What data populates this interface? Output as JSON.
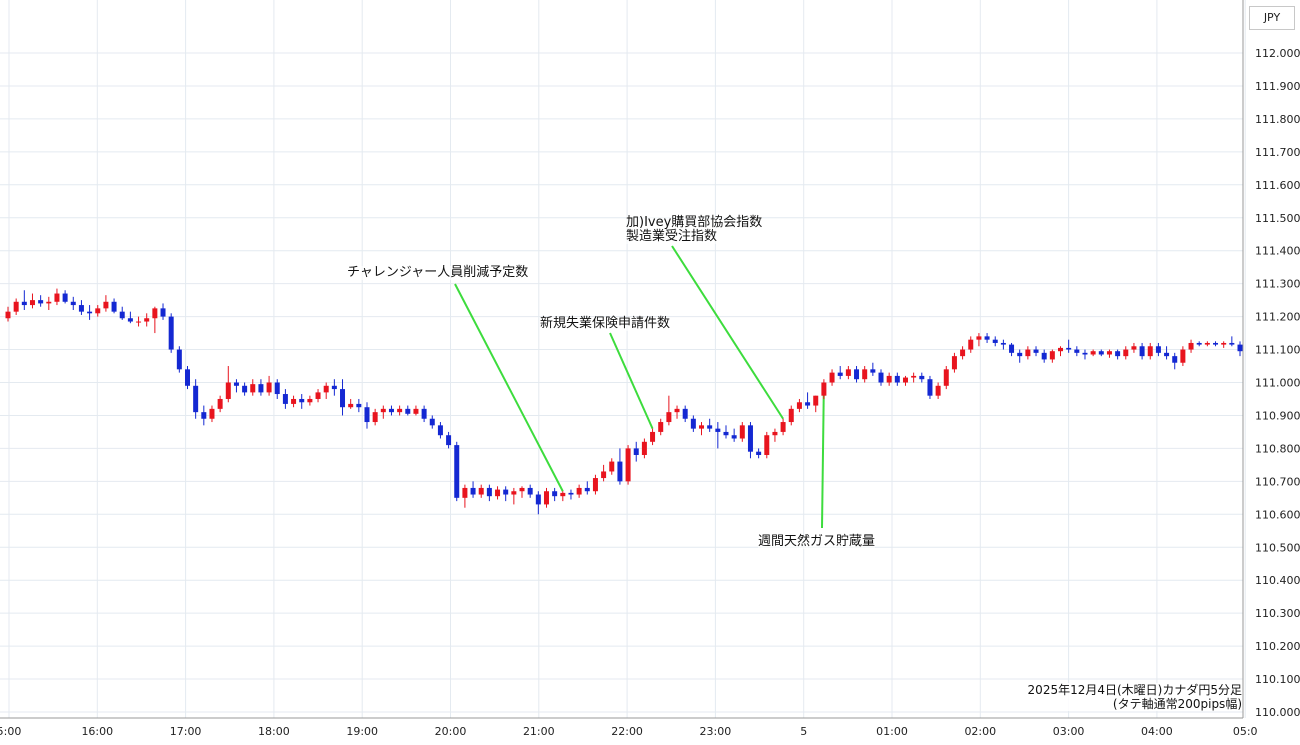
{
  "chart_data": {
    "type": "candlestick",
    "currency_label": "JPY",
    "caption_line1": "2025年12月4日(木曜日)カナダ円5分足",
    "caption_line2": "(タテ軸通常200pips幅)",
    "y_range": [
      110.0,
      112.05
    ],
    "y_ticks": [
      "112.000",
      "111.900",
      "111.800",
      "111.700",
      "111.600",
      "111.500",
      "111.400",
      "111.300",
      "111.200",
      "111.100",
      "111.000",
      "110.900",
      "110.800",
      "110.700",
      "110.600",
      "110.500",
      "110.400",
      "110.300",
      "110.200",
      "110.100",
      "110.000"
    ],
    "x_ticks": [
      "5:00",
      "16:00",
      "17:00",
      "18:00",
      "19:00",
      "20:00",
      "21:00",
      "22:00",
      "23:00",
      "5",
      "01:00",
      "02:00",
      "03:00",
      "04:00",
      "05:0"
    ],
    "up_color": "#e8141e",
    "down_color": "#1428d2",
    "annotations": [
      {
        "text": "チャレンジャー人員削減予定数",
        "candle": 68
      },
      {
        "text": "新規失業保険申請件数",
        "candle": 79
      },
      {
        "text": "加)Ivey購買部協会指数",
        "text2": "製造業受注指数",
        "candle": 95
      },
      {
        "text": "週間天然ガス貯蔵量",
        "candle": 100
      }
    ],
    "ohlc": [
      [
        111.195,
        111.23,
        111.185,
        111.215
      ],
      [
        111.215,
        111.255,
        111.205,
        111.245
      ],
      [
        111.245,
        111.28,
        111.22,
        111.235
      ],
      [
        111.235,
        111.27,
        111.225,
        111.25
      ],
      [
        111.25,
        111.265,
        111.23,
        111.24
      ],
      [
        111.24,
        111.26,
        111.22,
        111.245
      ],
      [
        111.245,
        111.285,
        111.235,
        111.27
      ],
      [
        111.27,
        111.28,
        111.24,
        111.245
      ],
      [
        111.245,
        111.26,
        111.22,
        111.235
      ],
      [
        111.235,
        111.25,
        111.205,
        111.215
      ],
      [
        111.215,
        111.235,
        111.19,
        111.21
      ],
      [
        111.21,
        111.235,
        111.2,
        111.225
      ],
      [
        111.225,
        111.265,
        111.215,
        111.245
      ],
      [
        111.245,
        111.255,
        111.21,
        111.215
      ],
      [
        111.215,
        111.23,
        111.19,
        111.195
      ],
      [
        111.195,
        111.215,
        111.18,
        111.185
      ],
      [
        111.185,
        111.2,
        111.17,
        111.185
      ],
      [
        111.185,
        111.21,
        111.17,
        111.195
      ],
      [
        111.195,
        111.23,
        111.15,
        111.225
      ],
      [
        111.225,
        111.24,
        111.19,
        111.2
      ],
      [
        111.2,
        111.21,
        111.09,
        111.1
      ],
      [
        111.1,
        111.11,
        111.03,
        111.04
      ],
      [
        111.04,
        111.05,
        110.98,
        110.99
      ],
      [
        110.99,
        111.01,
        110.89,
        110.91
      ],
      [
        110.91,
        110.93,
        110.87,
        110.89
      ],
      [
        110.89,
        110.93,
        110.88,
        110.92
      ],
      [
        110.92,
        110.96,
        110.91,
        110.95
      ],
      [
        110.95,
        111.05,
        110.94,
        111.0
      ],
      [
        111.0,
        111.01,
        110.97,
        110.99
      ],
      [
        110.99,
        111.0,
        110.96,
        110.97
      ],
      [
        110.97,
        111.01,
        110.96,
        110.995
      ],
      [
        110.995,
        111.01,
        110.96,
        110.97
      ],
      [
        110.97,
        111.02,
        110.96,
        111.0
      ],
      [
        111.0,
        111.01,
        110.95,
        110.965
      ],
      [
        110.965,
        110.98,
        110.92,
        110.935
      ],
      [
        110.935,
        110.96,
        110.925,
        110.95
      ],
      [
        110.95,
        110.965,
        110.92,
        110.94
      ],
      [
        110.94,
        110.96,
        110.93,
        110.95
      ],
      [
        110.95,
        110.98,
        110.94,
        110.97
      ],
      [
        110.97,
        111.0,
        110.95,
        110.99
      ],
      [
        110.99,
        111.01,
        110.96,
        110.98
      ],
      [
        110.98,
        111.01,
        110.9,
        110.925
      ],
      [
        110.925,
        110.95,
        110.92,
        110.935
      ],
      [
        110.935,
        110.95,
        110.91,
        110.925
      ],
      [
        110.925,
        110.94,
        110.86,
        110.88
      ],
      [
        110.88,
        110.92,
        110.87,
        110.91
      ],
      [
        110.91,
        110.93,
        110.89,
        110.92
      ],
      [
        110.92,
        110.93,
        110.9,
        110.91
      ],
      [
        110.91,
        110.93,
        110.9,
        110.92
      ],
      [
        110.92,
        110.93,
        110.9,
        110.905
      ],
      [
        110.905,
        110.93,
        110.9,
        110.92
      ],
      [
        110.92,
        110.93,
        110.88,
        110.89
      ],
      [
        110.89,
        110.9,
        110.86,
        110.87
      ],
      [
        110.87,
        110.88,
        110.83,
        110.84
      ],
      [
        110.84,
        110.85,
        110.8,
        110.81
      ],
      [
        110.81,
        110.82,
        110.64,
        110.65
      ],
      [
        110.65,
        110.69,
        110.62,
        110.68
      ],
      [
        110.68,
        110.7,
        110.65,
        110.66
      ],
      [
        110.66,
        110.69,
        110.65,
        110.68
      ],
      [
        110.68,
        110.69,
        110.64,
        110.655
      ],
      [
        110.655,
        110.685,
        110.645,
        110.675
      ],
      [
        110.675,
        110.685,
        110.64,
        110.66
      ],
      [
        110.66,
        110.68,
        110.63,
        110.67
      ],
      [
        110.67,
        110.685,
        110.65,
        110.68
      ],
      [
        110.68,
        110.69,
        110.65,
        110.66
      ],
      [
        110.66,
        110.67,
        110.6,
        110.63
      ],
      [
        110.63,
        110.68,
        110.62,
        110.67
      ],
      [
        110.67,
        110.68,
        110.64,
        110.655
      ],
      [
        110.655,
        110.67,
        110.64,
        110.665
      ],
      [
        110.665,
        110.675,
        110.645,
        110.66
      ],
      [
        110.66,
        110.69,
        110.65,
        110.68
      ],
      [
        110.68,
        110.7,
        110.66,
        110.67
      ],
      [
        110.67,
        110.72,
        110.66,
        110.71
      ],
      [
        110.71,
        110.75,
        110.7,
        110.73
      ],
      [
        110.73,
        110.77,
        110.72,
        110.76
      ],
      [
        110.76,
        110.8,
        110.69,
        110.7
      ],
      [
        110.7,
        110.81,
        110.69,
        110.8
      ],
      [
        110.8,
        110.82,
        110.76,
        110.78
      ],
      [
        110.78,
        110.83,
        110.77,
        110.82
      ],
      [
        110.82,
        110.86,
        110.81,
        110.85
      ],
      [
        110.85,
        110.89,
        110.84,
        110.88
      ],
      [
        110.88,
        110.96,
        110.87,
        110.91
      ],
      [
        110.91,
        110.93,
        110.89,
        110.92
      ],
      [
        110.92,
        110.93,
        110.88,
        110.89
      ],
      [
        110.89,
        110.9,
        110.85,
        110.86
      ],
      [
        110.86,
        110.88,
        110.84,
        110.87
      ],
      [
        110.87,
        110.89,
        110.85,
        110.86
      ],
      [
        110.86,
        110.88,
        110.8,
        110.85
      ],
      [
        110.85,
        110.87,
        110.83,
        110.84
      ],
      [
        110.84,
        110.86,
        110.82,
        110.83
      ],
      [
        110.83,
        110.88,
        110.82,
        110.87
      ],
      [
        110.87,
        110.88,
        110.77,
        110.79
      ],
      [
        110.79,
        110.8,
        110.77,
        110.78
      ],
      [
        110.78,
        110.85,
        110.77,
        110.84
      ],
      [
        110.84,
        110.86,
        110.82,
        110.85
      ],
      [
        110.85,
        110.89,
        110.84,
        110.88
      ],
      [
        110.88,
        110.93,
        110.87,
        110.92
      ],
      [
        110.92,
        110.95,
        110.91,
        110.94
      ],
      [
        110.94,
        110.97,
        110.92,
        110.93
      ],
      [
        110.93,
        110.96,
        110.91,
        110.96
      ],
      [
        110.96,
        111.01,
        110.95,
        111.0
      ],
      [
        111.0,
        111.04,
        110.99,
        111.03
      ],
      [
        111.03,
        111.05,
        111.01,
        111.02
      ],
      [
        111.02,
        111.05,
        111.01,
        111.04
      ],
      [
        111.04,
        111.05,
        111.0,
        111.01
      ],
      [
        111.01,
        111.05,
        111.0,
        111.04
      ],
      [
        111.04,
        111.06,
        111.02,
        111.03
      ],
      [
        111.03,
        111.04,
        110.99,
        111.0
      ],
      [
        111.0,
        111.03,
        110.99,
        111.02
      ],
      [
        111.02,
        111.03,
        110.99,
        111.0
      ],
      [
        111.0,
        111.02,
        110.99,
        111.015
      ],
      [
        111.015,
        111.03,
        111.0,
        111.02
      ],
      [
        111.02,
        111.03,
        111.0,
        111.01
      ],
      [
        111.01,
        111.02,
        110.95,
        110.96
      ],
      [
        110.96,
        111.0,
        110.95,
        110.99
      ],
      [
        110.99,
        111.05,
        110.98,
        111.04
      ],
      [
        111.04,
        111.09,
        111.03,
        111.08
      ],
      [
        111.08,
        111.11,
        111.07,
        111.1
      ],
      [
        111.1,
        111.14,
        111.09,
        111.13
      ],
      [
        111.13,
        111.15,
        111.11,
        111.14
      ],
      [
        111.14,
        111.15,
        111.12,
        111.13
      ],
      [
        111.13,
        111.14,
        111.11,
        111.12
      ],
      [
        111.12,
        111.13,
        111.1,
        111.115
      ],
      [
        111.115,
        111.12,
        111.08,
        111.09
      ],
      [
        111.09,
        111.1,
        111.06,
        111.08
      ],
      [
        111.08,
        111.11,
        111.07,
        111.1
      ],
      [
        111.1,
        111.11,
        111.08,
        111.09
      ],
      [
        111.09,
        111.1,
        111.06,
        111.07
      ],
      [
        111.07,
        111.1,
        111.06,
        111.095
      ],
      [
        111.095,
        111.11,
        111.08,
        111.105
      ],
      [
        111.105,
        111.13,
        111.09,
        111.1
      ],
      [
        111.1,
        111.11,
        111.08,
        111.09
      ],
      [
        111.09,
        111.1,
        111.07,
        111.085
      ],
      [
        111.085,
        111.1,
        111.08,
        111.095
      ],
      [
        111.095,
        111.1,
        111.08,
        111.085
      ],
      [
        111.085,
        111.1,
        111.075,
        111.095
      ],
      [
        111.095,
        111.1,
        111.07,
        111.08
      ],
      [
        111.08,
        111.11,
        111.07,
        111.1
      ],
      [
        111.1,
        111.12,
        111.09,
        111.11
      ],
      [
        111.11,
        111.12,
        111.07,
        111.08
      ],
      [
        111.08,
        111.12,
        111.07,
        111.11
      ],
      [
        111.11,
        111.12,
        111.08,
        111.09
      ],
      [
        111.09,
        111.11,
        111.07,
        111.08
      ],
      [
        111.08,
        111.09,
        111.04,
        111.06
      ],
      [
        111.06,
        111.11,
        111.05,
        111.1
      ],
      [
        111.1,
        111.13,
        111.09,
        111.12
      ],
      [
        111.12,
        111.125,
        111.11,
        111.115
      ],
      [
        111.115,
        111.125,
        111.11,
        111.12
      ],
      [
        111.12,
        111.125,
        111.11,
        111.115
      ],
      [
        111.115,
        111.125,
        111.105,
        111.12
      ],
      [
        111.12,
        111.14,
        111.11,
        111.115
      ],
      [
        111.115,
        111.125,
        111.08,
        111.095
      ]
    ]
  }
}
